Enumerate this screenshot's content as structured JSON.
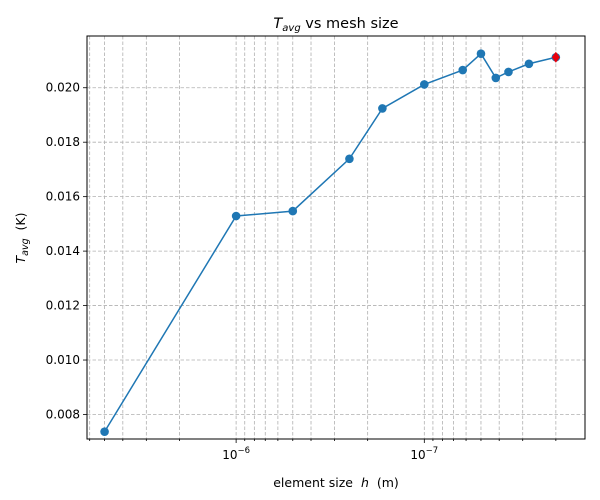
{
  "chart_data": {
    "type": "line",
    "title_prefix": "T",
    "title_sub": "avg",
    "title_suffix": " vs mesh size",
    "xlabel_prefix": "element size  ",
    "xlabel_var": "h",
    "xlabel_suffix": "  (m)",
    "ylabel_prefix": "T",
    "ylabel_sub": "avg",
    "ylabel_suffix": "  (K)",
    "x_scale": "log-reversed",
    "x_ticks": [
      {
        "value": 1e-06,
        "base": "10",
        "exp": "−6"
      },
      {
        "value": 1e-07,
        "base": "10",
        "exp": "−7"
      }
    ],
    "y_ticks": [
      "0.008",
      "0.010",
      "0.012",
      "0.014",
      "0.016",
      "0.018",
      "0.020"
    ],
    "ylim": [
      0.0071,
      0.0219
    ],
    "xlim": [
      6.2e-06,
      1.4e-08
    ],
    "grid": true,
    "line_color": "#1f77b4",
    "highlight_color": "#e8000b",
    "series": [
      {
        "x": [
          5e-06,
          1e-06,
          5e-07,
          2.5e-07,
          1.67e-07,
          1e-07,
          6.25e-08,
          5e-08,
          4.17e-08,
          3.57e-08,
          2.78e-08,
          2e-08
        ],
        "y": [
          0.00737,
          0.01529,
          0.01547,
          0.01739,
          0.01924,
          0.02012,
          0.02065,
          0.02125,
          0.02036,
          0.02058,
          0.02088,
          0.02112
        ]
      }
    ],
    "highlight_point": {
      "x": 2e-08,
      "y": 0.02112
    }
  }
}
